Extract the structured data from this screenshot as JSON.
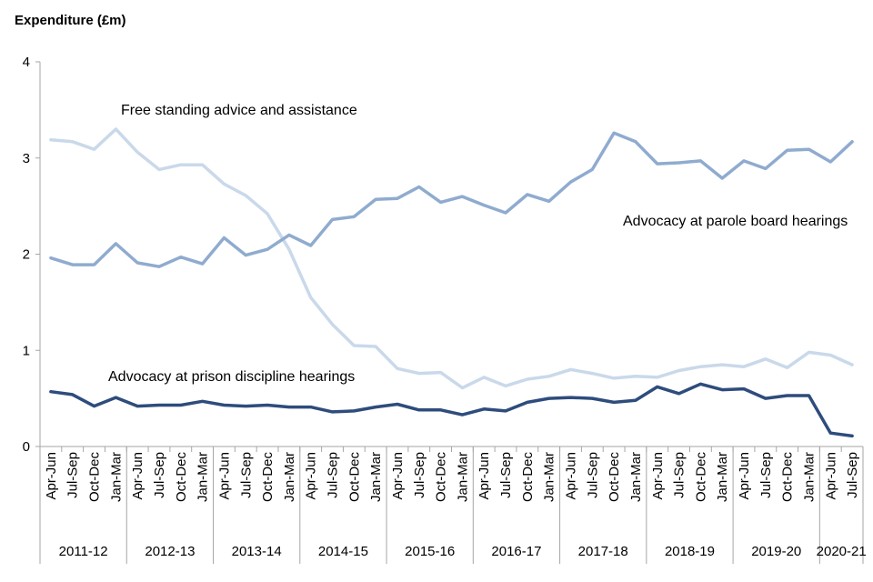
{
  "chart_data": {
    "type": "line",
    "title": "",
    "xlabel": "",
    "ylabel": "Expenditure (£m)",
    "ylim": [
      0,
      4
    ],
    "yticks": [
      0,
      1,
      2,
      3,
      4
    ],
    "grid": false,
    "categories": [
      "Apr-Jun",
      "Jul-Sep",
      "Oct-Dec",
      "Jan-Mar",
      "Apr-Jun",
      "Jul-Sep",
      "Oct-Dec",
      "Jan-Mar",
      "Apr-Jun",
      "Jul-Sep",
      "Oct-Dec",
      "Jan-Mar",
      "Apr-Jun",
      "Jul-Sep",
      "Oct-Dec",
      "Jan-Mar",
      "Apr-Jun",
      "Jul-Sep",
      "Oct-Dec",
      "Jan-Mar",
      "Apr-Jun",
      "Jul-Sep",
      "Oct-Dec",
      "Jan-Mar",
      "Apr-Jun",
      "Jul-Sep",
      "Oct-Dec",
      "Jan-Mar",
      "Apr-Jun",
      "Jul-Sep",
      "Oct-Dec",
      "Jan-Mar",
      "Apr-Jun",
      "Jul-Sep",
      "Oct-Dec",
      "Jan-Mar",
      "Apr-Jun",
      "Jul-Sep"
    ],
    "groups": [
      {
        "label": "2011-12",
        "count": 4
      },
      {
        "label": "2012-13",
        "count": 4
      },
      {
        "label": "2013-14",
        "count": 4
      },
      {
        "label": "2014-15",
        "count": 4
      },
      {
        "label": "2015-16",
        "count": 4
      },
      {
        "label": "2016-17",
        "count": 4
      },
      {
        "label": "2017-18",
        "count": 4
      },
      {
        "label": "2018-19",
        "count": 4
      },
      {
        "label": "2019-20",
        "count": 4
      },
      {
        "label": "2020-21",
        "count": 2
      }
    ],
    "series": [
      {
        "name": "Free standing advice and assistance",
        "color": "#c9d9ea",
        "values": [
          3.19,
          3.17,
          3.09,
          3.3,
          3.06,
          2.88,
          2.93,
          2.93,
          2.73,
          2.61,
          2.42,
          2.05,
          1.55,
          1.27,
          1.05,
          1.04,
          0.81,
          0.76,
          0.77,
          0.61,
          0.72,
          0.63,
          0.7,
          0.73,
          0.8,
          0.76,
          0.71,
          0.73,
          0.72,
          0.79,
          0.83,
          0.85,
          0.83,
          0.91,
          0.82,
          0.98,
          0.95,
          0.85
        ]
      },
      {
        "name": "Advocacy at parole board hearings",
        "color": "#8fabcf",
        "values": [
          1.96,
          1.89,
          1.89,
          2.11,
          1.91,
          1.87,
          1.97,
          1.9,
          2.17,
          1.99,
          2.05,
          2.2,
          2.09,
          2.36,
          2.39,
          2.57,
          2.58,
          2.7,
          2.54,
          2.6,
          2.51,
          2.43,
          2.62,
          2.55,
          2.75,
          2.88,
          3.26,
          3.17,
          2.94,
          2.95,
          2.97,
          2.79,
          2.97,
          2.89,
          3.08,
          3.09,
          2.96,
          3.17
        ]
      },
      {
        "name": "Advocacy at prison discipline hearings",
        "color": "#2e4c7c",
        "values": [
          0.57,
          0.54,
          0.42,
          0.51,
          0.42,
          0.43,
          0.43,
          0.47,
          0.43,
          0.42,
          0.43,
          0.41,
          0.41,
          0.36,
          0.37,
          0.41,
          0.44,
          0.38,
          0.38,
          0.33,
          0.39,
          0.37,
          0.46,
          0.5,
          0.51,
          0.5,
          0.46,
          0.48,
          0.62,
          0.55,
          0.65,
          0.59,
          0.6,
          0.5,
          0.53,
          0.53,
          0.14,
          0.11
        ]
      }
    ]
  }
}
